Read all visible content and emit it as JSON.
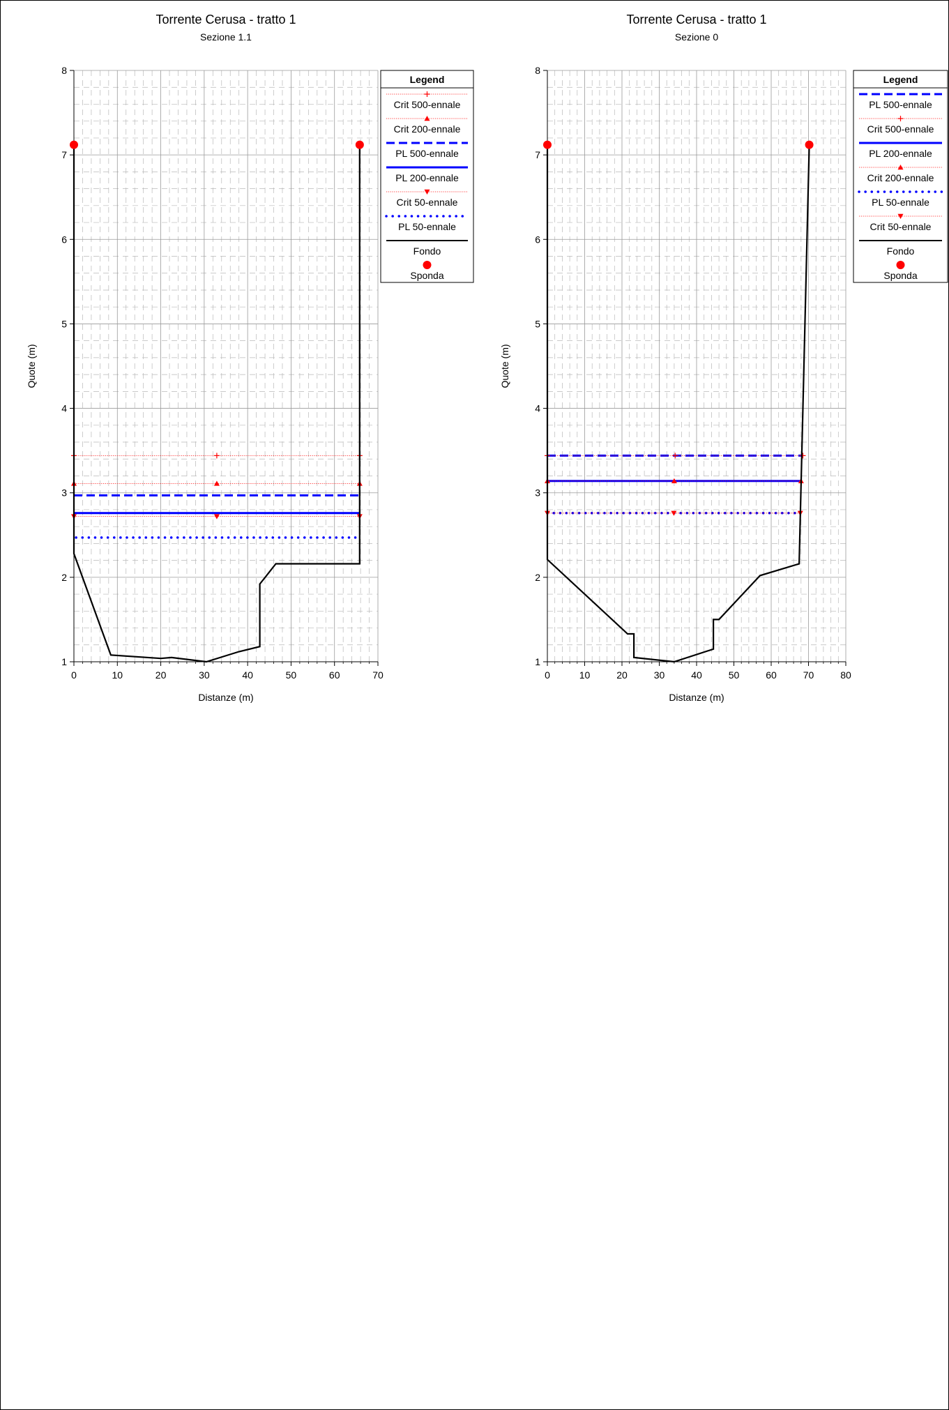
{
  "chart_data": [
    {
      "type": "line",
      "title": "Torrente Cerusa - tratto 1",
      "subtitle": "Sezione  1.1",
      "xlabel": "Distanze (m)",
      "ylabel": "Quote (m)",
      "xlim": [
        0,
        70
      ],
      "ylim": [
        1,
        8
      ],
      "xticks": [
        "0",
        "10",
        "20",
        "30",
        "40",
        "50",
        "60",
        "70"
      ],
      "yticks": [
        "1",
        "2",
        "3",
        "4",
        "5",
        "6",
        "7",
        "8"
      ],
      "grid": true,
      "legend_placement": "right",
      "legend_title": "Legend",
      "legend": [
        {
          "name": "Crit 500-ennale",
          "style": "crit",
          "marker": "plus",
          "color": "#ff0000"
        },
        {
          "name": "Crit 200-ennale",
          "style": "crit",
          "marker": "triangle-up",
          "color": "#ff0000"
        },
        {
          "name": "PL 500-ennale",
          "style": "dashed",
          "color": "#0000ff"
        },
        {
          "name": "PL 200-ennale",
          "style": "solid-blue",
          "color": "#0000ff"
        },
        {
          "name": "Crit 50-ennale",
          "style": "crit",
          "marker": "triangle-down",
          "color": "#ff0000"
        },
        {
          "name": "PL 50-ennale",
          "style": "dotted",
          "color": "#0000ff"
        },
        {
          "name": "Fondo",
          "style": "solid-black",
          "color": "#000000"
        },
        {
          "name": "Sponda",
          "style": "marker",
          "marker": "circle",
          "color": "#ff0000"
        }
      ],
      "fondo": [
        [
          0,
          7.1
        ],
        [
          0,
          2.28
        ],
        [
          8.5,
          1.08
        ],
        [
          20,
          1.04
        ],
        [
          22.5,
          1.05
        ],
        [
          30.5,
          1.0
        ],
        [
          38,
          1.12
        ],
        [
          42.8,
          1.18
        ],
        [
          42.8,
          1.92
        ],
        [
          44.5,
          2.03
        ],
        [
          46.5,
          2.16
        ],
        [
          65.8,
          2.16
        ],
        [
          65.8,
          7.1
        ]
      ],
      "sponda": [
        [
          0,
          7.12
        ],
        [
          65.8,
          7.12
        ]
      ],
      "levels": [
        {
          "name": "Crit 500-ennale",
          "y": 3.44,
          "x": [
            0,
            65.8
          ]
        },
        {
          "name": "Crit 200-ennale",
          "y": 3.11,
          "x": [
            0,
            65.8
          ]
        },
        {
          "name": "PL 500-ennale",
          "y": 2.97,
          "x": [
            0,
            65.8
          ]
        },
        {
          "name": "PL 200-ennale",
          "y": 2.76,
          "x": [
            0,
            65.8
          ]
        },
        {
          "name": "Crit 50-ennale",
          "y": 2.72,
          "x": [
            0,
            65.8
          ]
        },
        {
          "name": "PL 50-ennale",
          "y": 2.47,
          "x": [
            0.5,
            64.8
          ]
        }
      ]
    },
    {
      "type": "line",
      "title": "Torrente Cerusa - tratto 1",
      "subtitle": "Sezione 0",
      "xlabel": "Distanze (m)",
      "ylabel": "Quote (m)",
      "xlim": [
        0,
        80
      ],
      "ylim": [
        1,
        8
      ],
      "xticks": [
        "0",
        "10",
        "20",
        "30",
        "40",
        "50",
        "60",
        "70",
        "80"
      ],
      "yticks": [
        "1",
        "2",
        "3",
        "4",
        "5",
        "6",
        "7",
        "8"
      ],
      "grid": true,
      "legend_placement": "right",
      "legend_title": "Legend",
      "legend": [
        {
          "name": "PL 500-ennale",
          "style": "dashed",
          "color": "#0000ff"
        },
        {
          "name": "Crit 500-ennale",
          "style": "crit",
          "marker": "plus",
          "color": "#ff0000"
        },
        {
          "name": "PL 200-ennale",
          "style": "solid-blue",
          "color": "#0000ff"
        },
        {
          "name": "Crit 200-ennale",
          "style": "crit",
          "marker": "triangle-up",
          "color": "#ff0000"
        },
        {
          "name": "PL 50-ennale",
          "style": "dotted",
          "color": "#0000ff"
        },
        {
          "name": "Crit 50-ennale",
          "style": "crit",
          "marker": "triangle-down",
          "color": "#ff0000"
        },
        {
          "name": "Fondo",
          "style": "solid-black",
          "color": "#000000"
        },
        {
          "name": "Sponda",
          "style": "marker",
          "marker": "circle",
          "color": "#ff0000"
        }
      ],
      "fondo": [
        [
          0,
          7.1
        ],
        [
          0,
          2.21
        ],
        [
          21.5,
          1.33
        ],
        [
          23.2,
          1.33
        ],
        [
          23.2,
          1.05
        ],
        [
          34,
          1.0
        ],
        [
          44.5,
          1.15
        ],
        [
          44.5,
          1.5
        ],
        [
          46,
          1.5
        ],
        [
          57,
          2.02
        ],
        [
          67.5,
          2.16
        ],
        [
          70.2,
          7.12
        ]
      ],
      "sponda": [
        [
          0,
          7.12
        ],
        [
          70.2,
          7.12
        ]
      ],
      "levels": [
        {
          "name": "PL 500-ennale",
          "y": 3.44,
          "x": [
            0,
            68.5
          ]
        },
        {
          "name": "Crit 500-ennale",
          "y": 3.44,
          "x": [
            0,
            68.5
          ]
        },
        {
          "name": "PL 200-ennale",
          "y": 3.14,
          "x": [
            0,
            68.0
          ]
        },
        {
          "name": "Crit 200-ennale",
          "y": 3.14,
          "x": [
            0,
            68.0
          ]
        },
        {
          "name": "PL 50-ennale",
          "y": 2.76,
          "x": [
            0,
            67.8
          ]
        },
        {
          "name": "Crit 50-ennale",
          "y": 2.76,
          "x": [
            0,
            67.8
          ]
        }
      ]
    }
  ]
}
